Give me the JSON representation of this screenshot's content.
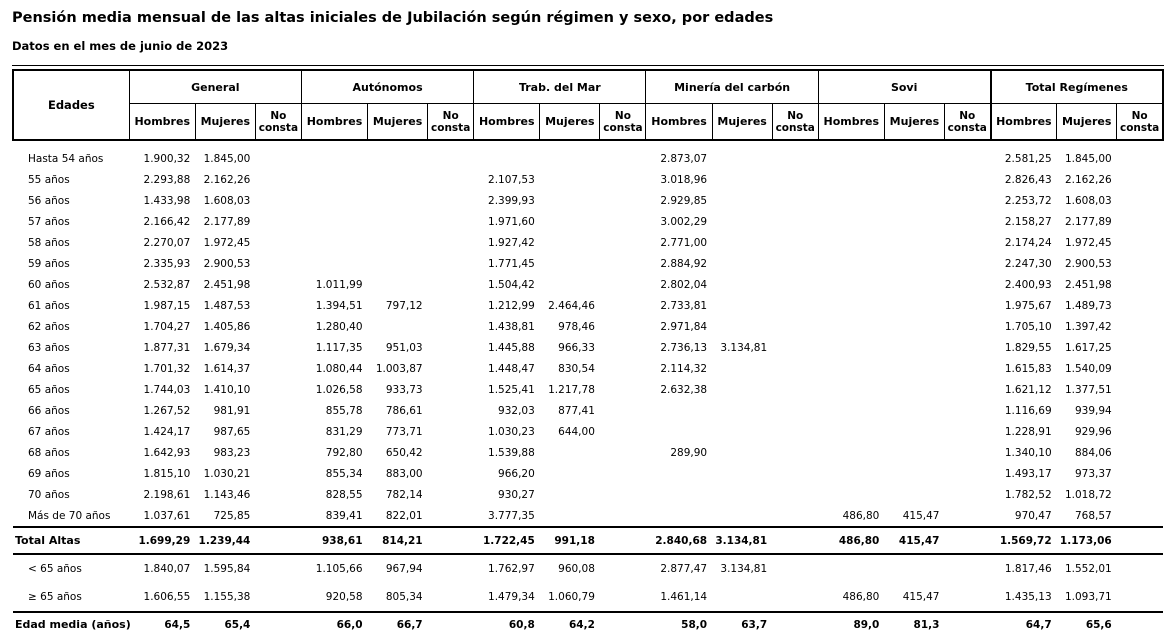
{
  "title": "Pensión media mensual de las altas iniciales de Jubilación según régimen y sexo, por edades",
  "subtitle": "Datos en el mes de junio de 2023",
  "colors": {
    "text": "#000000",
    "border": "#000000",
    "background": "#ffffff"
  },
  "table": {
    "row_header": "Edades",
    "groups": [
      "General",
      "Autónomos",
      "Trab. del Mar",
      "Minería del carbón",
      "Sovi",
      "Total Regímenes"
    ],
    "subheaders": [
      "Hombres",
      "Mujeres",
      "No consta"
    ],
    "rows": [
      {
        "label": "Hasta 54 años",
        "type": "data",
        "rule_below": false,
        "values": [
          "1.900,32",
          "1.845,00",
          "",
          "",
          "",
          "",
          "",
          "",
          "",
          "2.873,07",
          "",
          "",
          "",
          "",
          "",
          "2.581,25",
          "1.845,00",
          ""
        ]
      },
      {
        "label": "55 años",
        "type": "data",
        "rule_below": false,
        "values": [
          "2.293,88",
          "2.162,26",
          "",
          "",
          "",
          "",
          "2.107,53",
          "",
          "",
          "3.018,96",
          "",
          "",
          "",
          "",
          "",
          "2.826,43",
          "2.162,26",
          ""
        ]
      },
      {
        "label": "56 años",
        "type": "data",
        "rule_below": false,
        "values": [
          "1.433,98",
          "1.608,03",
          "",
          "",
          "",
          "",
          "2.399,93",
          "",
          "",
          "2.929,85",
          "",
          "",
          "",
          "",
          "",
          "2.253,72",
          "1.608,03",
          ""
        ]
      },
      {
        "label": "57 años",
        "type": "data",
        "rule_below": false,
        "values": [
          "2.166,42",
          "2.177,89",
          "",
          "",
          "",
          "",
          "1.971,60",
          "",
          "",
          "3.002,29",
          "",
          "",
          "",
          "",
          "",
          "2.158,27",
          "2.177,89",
          ""
        ]
      },
      {
        "label": "58 años",
        "type": "data",
        "rule_below": false,
        "values": [
          "2.270,07",
          "1.972,45",
          "",
          "",
          "",
          "",
          "1.927,42",
          "",
          "",
          "2.771,00",
          "",
          "",
          "",
          "",
          "",
          "2.174,24",
          "1.972,45",
          ""
        ]
      },
      {
        "label": "59 años",
        "type": "data",
        "rule_below": false,
        "values": [
          "2.335,93",
          "2.900,53",
          "",
          "",
          "",
          "",
          "1.771,45",
          "",
          "",
          "2.884,92",
          "",
          "",
          "",
          "",
          "",
          "2.247,30",
          "2.900,53",
          ""
        ]
      },
      {
        "label": "60 años",
        "type": "data",
        "rule_below": false,
        "values": [
          "2.532,87",
          "2.451,98",
          "",
          "1.011,99",
          "",
          "",
          "1.504,42",
          "",
          "",
          "2.802,04",
          "",
          "",
          "",
          "",
          "",
          "2.400,93",
          "2.451,98",
          ""
        ]
      },
      {
        "label": "61 años",
        "type": "data",
        "rule_below": false,
        "values": [
          "1.987,15",
          "1.487,53",
          "",
          "1.394,51",
          "797,12",
          "",
          "1.212,99",
          "2.464,46",
          "",
          "2.733,81",
          "",
          "",
          "",
          "",
          "",
          "1.975,67",
          "1.489,73",
          ""
        ]
      },
      {
        "label": "62 años",
        "type": "data",
        "rule_below": false,
        "values": [
          "1.704,27",
          "1.405,86",
          "",
          "1.280,40",
          "",
          "",
          "1.438,81",
          "978,46",
          "",
          "2.971,84",
          "",
          "",
          "",
          "",
          "",
          "1.705,10",
          "1.397,42",
          ""
        ]
      },
      {
        "label": "63 años",
        "type": "data",
        "rule_below": false,
        "values": [
          "1.877,31",
          "1.679,34",
          "",
          "1.117,35",
          "951,03",
          "",
          "1.445,88",
          "966,33",
          "",
          "2.736,13",
          "3.134,81",
          "",
          "",
          "",
          "",
          "1.829,55",
          "1.617,25",
          ""
        ]
      },
      {
        "label": "64 años",
        "type": "data",
        "rule_below": false,
        "values": [
          "1.701,32",
          "1.614,37",
          "",
          "1.080,44",
          "1.003,87",
          "",
          "1.448,47",
          "830,54",
          "",
          "2.114,32",
          "",
          "",
          "",
          "",
          "",
          "1.615,83",
          "1.540,09",
          ""
        ]
      },
      {
        "label": "65 años",
        "type": "data",
        "rule_below": false,
        "values": [
          "1.744,03",
          "1.410,10",
          "",
          "1.026,58",
          "933,73",
          "",
          "1.525,41",
          "1.217,78",
          "",
          "2.632,38",
          "",
          "",
          "",
          "",
          "",
          "1.621,12",
          "1.377,51",
          ""
        ]
      },
      {
        "label": "66 años",
        "type": "data",
        "rule_below": false,
        "values": [
          "1.267,52",
          "981,91",
          "",
          "855,78",
          "786,61",
          "",
          "932,03",
          "877,41",
          "",
          "",
          "",
          "",
          "",
          "",
          "",
          "1.116,69",
          "939,94",
          ""
        ]
      },
      {
        "label": "67 años",
        "type": "data",
        "rule_below": false,
        "values": [
          "1.424,17",
          "987,65",
          "",
          "831,29",
          "773,71",
          "",
          "1.030,23",
          "644,00",
          "",
          "",
          "",
          "",
          "",
          "",
          "",
          "1.228,91",
          "929,96",
          ""
        ]
      },
      {
        "label": "68 años",
        "type": "data",
        "rule_below": false,
        "values": [
          "1.642,93",
          "983,23",
          "",
          "792,80",
          "650,42",
          "",
          "1.539,88",
          "",
          "",
          "289,90",
          "",
          "",
          "",
          "",
          "",
          "1.340,10",
          "884,06",
          ""
        ]
      },
      {
        "label": "69 años",
        "type": "data",
        "rule_below": false,
        "values": [
          "1.815,10",
          "1.030,21",
          "",
          "855,34",
          "883,00",
          "",
          "966,20",
          "",
          "",
          "",
          "",
          "",
          "",
          "",
          "",
          "1.493,17",
          "973,37",
          ""
        ]
      },
      {
        "label": "70 años",
        "type": "data",
        "rule_below": false,
        "values": [
          "2.198,61",
          "1.143,46",
          "",
          "828,55",
          "782,14",
          "",
          "930,27",
          "",
          "",
          "",
          "",
          "",
          "",
          "",
          "",
          "1.782,52",
          "1.018,72",
          ""
        ]
      },
      {
        "label": "Más de 70 años",
        "type": "data",
        "rule_below": true,
        "values": [
          "1.037,61",
          "725,85",
          "",
          "839,41",
          "822,01",
          "",
          "3.777,35",
          "",
          "",
          "",
          "",
          "",
          "486,80",
          "415,47",
          "",
          "970,47",
          "768,57",
          ""
        ]
      },
      {
        "label": "Total Altas",
        "type": "total",
        "rule_below": true,
        "values": [
          "1.699,29",
          "1.239,44",
          "",
          "938,61",
          "814,21",
          "",
          "1.722,45",
          "991,18",
          "",
          "2.840,68",
          "3.134,81",
          "",
          "486,80",
          "415,47",
          "",
          "1.569,72",
          "1.173,06",
          ""
        ]
      },
      {
        "label": "< 65 años",
        "type": "breakdown",
        "rule_below": false,
        "values": [
          "1.840,07",
          "1.595,84",
          "",
          "1.105,66",
          "967,94",
          "",
          "1.762,97",
          "960,08",
          "",
          "2.877,47",
          "3.134,81",
          "",
          "",
          "",
          "",
          "1.817,46",
          "1.552,01",
          ""
        ]
      },
      {
        "label": "≥ 65 años",
        "type": "breakdown",
        "rule_below": true,
        "values": [
          "1.606,55",
          "1.155,38",
          "",
          "920,58",
          "805,34",
          "",
          "1.479,34",
          "1.060,79",
          "",
          "1.461,14",
          "",
          "",
          "486,80",
          "415,47",
          "",
          "1.435,13",
          "1.093,71",
          ""
        ]
      },
      {
        "label": "Edad media (años)",
        "type": "average",
        "rule_below": true,
        "values": [
          "64,5",
          "65,4",
          "",
          "66,0",
          "66,7",
          "",
          "60,8",
          "64,2",
          "",
          "58,0",
          "63,7",
          "",
          "89,0",
          "81,3",
          "",
          "64,7",
          "65,6",
          ""
        ]
      }
    ]
  }
}
